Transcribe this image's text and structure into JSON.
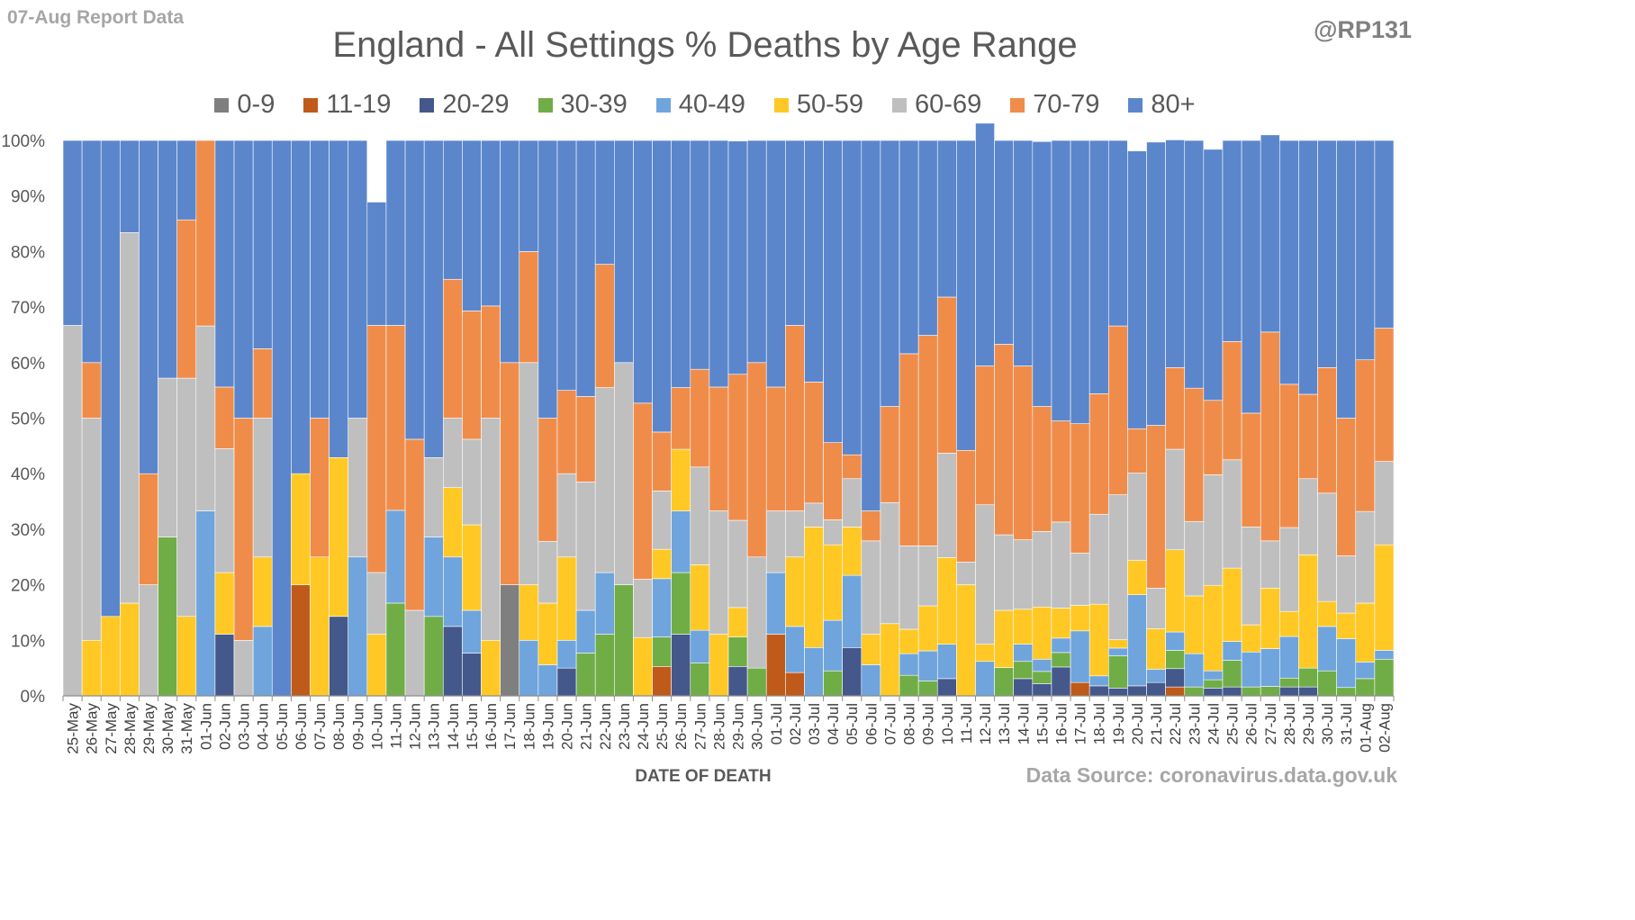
{
  "report_label": "07-Aug Report Data",
  "handle": "@RP131",
  "source": "Data Source: coronavirus.data.gov.uk",
  "chart_data": {
    "type": "bar",
    "stacked": true,
    "title": "England - All Settings % Deaths by Age Range",
    "xlabel": "DATE OF DEATH",
    "ylabel": "",
    "ylim": [
      0,
      100
    ],
    "yticks": [
      "0%",
      "10%",
      "20%",
      "30%",
      "40%",
      "50%",
      "60%",
      "70%",
      "80%",
      "90%",
      "100%"
    ],
    "legend_position": "top",
    "grid": false,
    "categories": [
      "25-May",
      "26-May",
      "27-May",
      "28-May",
      "29-May",
      "30-May",
      "31-May",
      "01-Jun",
      "02-Jun",
      "03-Jun",
      "04-Jun",
      "05-Jun",
      "06-Jun",
      "07-Jun",
      "08-Jun",
      "09-Jun",
      "10-Jun",
      "11-Jun",
      "12-Jun",
      "13-Jun",
      "14-Jun",
      "15-Jun",
      "16-Jun",
      "17-Jun",
      "18-Jun",
      "19-Jun",
      "20-Jun",
      "21-Jun",
      "22-Jun",
      "23-Jun",
      "24-Jun",
      "25-Jun",
      "26-Jun",
      "27-Jun",
      "28-Jun",
      "29-Jun",
      "30-Jun",
      "01-Jul",
      "02-Jul",
      "03-Jul",
      "04-Jul",
      "05-Jul",
      "06-Jul",
      "07-Jul",
      "08-Jul",
      "09-Jul",
      "10-Jul",
      "11-Jul",
      "12-Jul",
      "13-Jul",
      "14-Jul",
      "15-Jul",
      "16-Jul",
      "17-Jul",
      "18-Jul",
      "19-Jul",
      "20-Jul",
      "21-Jul",
      "22-Jul",
      "23-Jul",
      "24-Jul",
      "25-Jul",
      "26-Jul",
      "27-Jul",
      "28-Jul",
      "29-Jul",
      "30-Jul",
      "31-Jul",
      "01-Aug",
      "02-Aug"
    ],
    "series": [
      {
        "name": "0-9",
        "color": "#7f7f7f",
        "values": [
          0,
          0,
          0,
          0,
          0,
          0,
          0,
          0,
          0,
          0,
          0,
          0,
          0,
          0,
          0,
          0,
          0,
          0,
          0,
          0,
          0,
          0,
          0,
          20,
          0,
          0,
          0,
          0,
          0,
          0,
          0,
          0,
          0,
          0,
          0,
          0,
          0,
          0,
          0,
          0,
          0,
          0,
          0,
          0,
          0,
          0,
          0,
          0,
          0,
          0,
          0,
          0,
          0,
          0,
          0,
          0,
          0,
          0,
          0,
          0,
          0,
          0,
          0,
          0,
          0,
          0,
          0,
          0,
          0,
          0
        ]
      },
      {
        "name": "11-19",
        "color": "#c05a1a",
        "values": [
          0,
          0,
          0,
          0,
          0,
          0,
          0,
          0,
          0,
          0,
          0,
          0,
          20,
          0,
          0,
          0,
          0,
          0,
          0,
          0,
          0,
          0,
          0,
          0,
          0,
          0,
          0,
          0,
          0,
          0,
          0,
          5.3,
          0,
          0,
          0,
          0,
          0,
          11.1,
          4.2,
          0,
          0,
          0,
          0,
          0,
          0,
          0,
          0,
          0,
          0,
          0,
          0,
          0,
          0,
          2.4,
          0,
          0,
          0,
          0,
          1.6,
          0,
          0,
          0,
          0,
          0,
          0,
          0,
          0,
          0,
          0,
          0
        ]
      },
      {
        "name": "20-29",
        "color": "#44588c",
        "values": [
          0,
          0,
          0,
          0,
          0,
          0,
          0,
          0,
          11.1,
          0,
          0,
          0,
          0,
          0,
          14.3,
          0,
          0,
          0,
          0,
          0,
          12.5,
          7.7,
          0,
          0,
          0,
          0,
          5,
          0,
          0,
          0,
          0,
          0,
          11.1,
          0,
          0,
          5.3,
          0,
          0,
          0,
          0,
          0,
          8.7,
          0,
          0,
          0,
          0,
          3.1,
          0,
          0,
          0,
          3.1,
          2.2,
          5.2,
          0,
          1.8,
          1.4,
          1.8,
          2.4,
          3.3,
          0,
          1.4,
          1.6,
          0,
          0,
          1.6,
          1.6,
          0,
          0,
          0,
          0
        ]
      },
      {
        "name": "30-39",
        "color": "#70ad47",
        "values": [
          0,
          0,
          0,
          0,
          0,
          28.6,
          0,
          0,
          0,
          0,
          0,
          0,
          0,
          0,
          0,
          0,
          0,
          16.7,
          0,
          14.3,
          0,
          0,
          0,
          0,
          0,
          0,
          0,
          7.7,
          11.1,
          20,
          0,
          5.3,
          11.1,
          5.9,
          0,
          5.3,
          5,
          0,
          0,
          0,
          4.5,
          0,
          0,
          0,
          3.7,
          2.7,
          0,
          0,
          0,
          5.1,
          3.1,
          2.2,
          2.6,
          0,
          0,
          5.8,
          0,
          0,
          3.3,
          1.6,
          1.5,
          4.8,
          1.6,
          1.7,
          1.6,
          3.4,
          4.5,
          1.5,
          3.1,
          6.6
        ]
      },
      {
        "name": "40-49",
        "color": "#6fa5dc",
        "values": [
          0,
          0,
          0,
          0,
          0,
          0,
          0,
          33.3,
          0,
          0,
          12.5,
          0,
          0,
          0,
          0,
          25,
          0,
          16.7,
          0,
          14.3,
          12.5,
          7.7,
          0,
          0,
          10,
          5.6,
          5,
          7.7,
          11.1,
          0,
          0,
          10.5,
          11.1,
          5.9,
          0,
          0,
          0,
          11.1,
          8.3,
          8.7,
          9.1,
          13,
          5.6,
          0,
          3.9,
          5.4,
          6.2,
          0,
          6.2,
          0,
          3.1,
          2.2,
          2.6,
          9.3,
          1.8,
          1.4,
          16.4,
          2.4,
          3.3,
          6,
          1.6,
          3.4,
          6.3,
          6.8,
          7.5,
          0,
          8,
          8.8,
          3,
          1.6
        ]
      },
      {
        "name": "50-59",
        "color": "#ffc825",
        "values": [
          0,
          10,
          14.3,
          16.7,
          0,
          0,
          14.3,
          0,
          11.1,
          0,
          12.5,
          0,
          20,
          25,
          28.6,
          0,
          11.1,
          0,
          0,
          0,
          12.5,
          15.4,
          10,
          0,
          10,
          11.1,
          15,
          0,
          0,
          0,
          10.5,
          5.3,
          11.1,
          11.8,
          11.1,
          5.3,
          0,
          0,
          12.5,
          21.7,
          13.6,
          8.7,
          5.5,
          13,
          4.4,
          8.1,
          15.6,
          20,
          3.1,
          10.3,
          6.3,
          9.4,
          5.4,
          4.6,
          12.9,
          1.5,
          6.2,
          7.3,
          14.8,
          10.4,
          15.4,
          13.2,
          4.9,
          10.9,
          4.5,
          20.4,
          4.5,
          4.6,
          10.6,
          19
        ]
      },
      {
        "name": "60-69",
        "color": "#bfbfbf",
        "values": [
          66.7,
          40,
          0,
          66.7,
          20,
          28.6,
          42.9,
          33.3,
          22.3,
          10,
          25,
          0,
          0,
          0,
          0,
          25,
          11.1,
          0,
          15.4,
          14.3,
          12.5,
          15.4,
          40,
          0,
          40,
          11.1,
          15,
          23.1,
          33.3,
          40,
          10.5,
          10.5,
          0,
          17.6,
          22.2,
          15.7,
          20,
          11.1,
          8.3,
          4.3,
          4.5,
          8.7,
          16.8,
          21.8,
          15,
          10.8,
          18.8,
          4.1,
          25.1,
          13.6,
          12.5,
          13.6,
          15.5,
          9.4,
          16.2,
          26.1,
          15.7,
          7.3,
          18.1,
          13.4,
          19.9,
          19.5,
          17.6,
          8.5,
          15.1,
          13.7,
          19.5,
          10.3,
          16.5,
          15
        ]
      },
      {
        "name": "70-79",
        "color": "#f08c4a",
        "values": [
          0,
          10,
          0,
          0,
          20,
          0,
          28.5,
          33.4,
          11.1,
          40,
          12.5,
          0,
          0,
          25,
          0,
          0,
          44.5,
          33.3,
          30.8,
          0,
          25,
          23.1,
          20.2,
          40,
          20,
          22.2,
          15,
          15.4,
          22.2,
          0,
          31.7,
          10.6,
          11.1,
          17.6,
          22.3,
          26.3,
          35,
          22.3,
          33.4,
          21.8,
          13.9,
          4.3,
          5.4,
          17.3,
          34.6,
          37.9,
          28.1,
          20.1,
          25,
          34.3,
          31.3,
          22.5,
          18.2,
          23.3,
          21.7,
          30.4,
          8,
          29.3,
          14.7,
          24,
          13.4,
          21.3,
          20.5,
          37.6,
          25.8,
          15.2,
          22.6,
          24.8,
          27.3,
          24
        ]
      },
      {
        "name": "80+",
        "color": "#5b86cc",
        "values": [
          33.3,
          40,
          85.7,
          16.6,
          60,
          42.8,
          14.3,
          0,
          44.4,
          50,
          37.5,
          100,
          60,
          50,
          57.1,
          50,
          22.2,
          33.3,
          53.8,
          57.1,
          25,
          30.7,
          29.8,
          40,
          20,
          50,
          45,
          46.1,
          22.3,
          40,
          47.3,
          52.5,
          44.5,
          41.2,
          44.4,
          42,
          40,
          44.4,
          33.3,
          43.5,
          54.4,
          56.6,
          66.7,
          47.9,
          38.4,
          35.1,
          28.2,
          55.8,
          43.7,
          36.7,
          40.6,
          47.7,
          50.5,
          51,
          45.6,
          33.4,
          50,
          51,
          41,
          44.6,
          45.2,
          36.2,
          49.1,
          35.5,
          43.9,
          45.7,
          40.9,
          50,
          39.5,
          33.8
        ]
      }
    ]
  }
}
